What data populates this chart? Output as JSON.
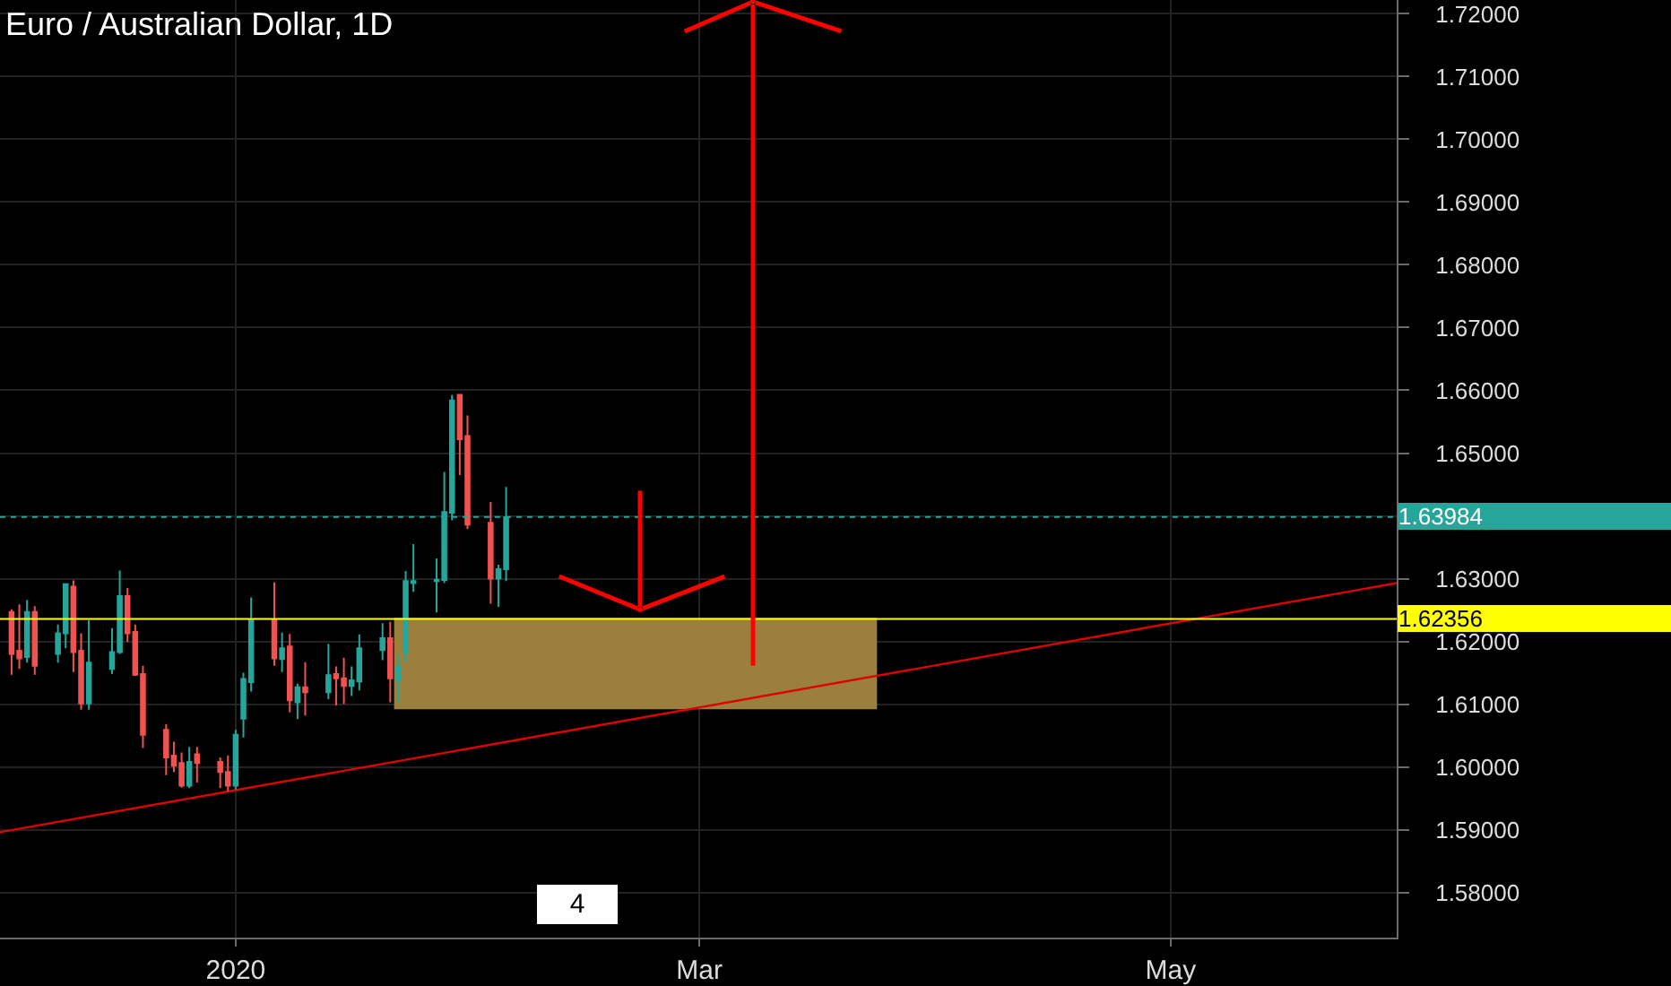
{
  "chart_data": {
    "type": "candlestick",
    "title": "Euro / Australian Dollar, 1D",
    "x": [
      "2019-12-03",
      "2019-12-04",
      "2019-12-05",
      "2019-12-06",
      "2019-12-09",
      "2019-12-10",
      "2019-12-11",
      "2019-12-12",
      "2019-12-13",
      "2019-12-16",
      "2019-12-17",
      "2019-12-18",
      "2019-12-19",
      "2019-12-20",
      "2019-12-23",
      "2019-12-24",
      "2019-12-25",
      "2019-12-26",
      "2019-12-27",
      "2019-12-30",
      "2019-12-31",
      "2020-01-01",
      "2020-01-02",
      "2020-01-03",
      "2020-01-06",
      "2020-01-07",
      "2020-01-08",
      "2020-01-09",
      "2020-01-10",
      "2020-01-13",
      "2020-01-14",
      "2020-01-15",
      "2020-01-16",
      "2020-01-17",
      "2020-01-20",
      "2020-01-21",
      "2020-01-22",
      "2020-01-23",
      "2020-01-24",
      "2020-01-27",
      "2020-01-28",
      "2020-01-29",
      "2020-01-30",
      "2020-01-31",
      "2020-02-03",
      "2020-02-04",
      "2020-02-05"
    ],
    "ohlc": [
      [
        1.6247,
        1.6251,
        1.6147,
        1.618
      ],
      [
        1.6185,
        1.6259,
        1.6156,
        1.6173
      ],
      [
        1.6175,
        1.6266,
        1.6166,
        1.6247
      ],
      [
        1.6247,
        1.6256,
        1.6147,
        1.6161
      ],
      [
        1.618,
        1.6227,
        1.6166,
        1.6213
      ],
      [
        1.6213,
        1.6291,
        1.6189,
        1.6291
      ],
      [
        1.6287,
        1.6297,
        1.6151,
        1.6183
      ],
      [
        1.6185,
        1.6213,
        1.6091,
        1.6101
      ],
      [
        1.6101,
        1.6234,
        1.6091,
        1.6166
      ],
      [
        1.6156,
        1.6221,
        1.6148,
        1.6183
      ],
      [
        1.6183,
        1.6313,
        1.618,
        1.6272
      ],
      [
        1.6272,
        1.6285,
        1.6199,
        1.6213
      ],
      [
        1.6215,
        1.6227,
        1.6145,
        1.6147
      ],
      [
        1.6148,
        1.6161,
        1.603,
        1.6051
      ],
      [
        1.6059,
        1.6068,
        1.5987,
        1.6015
      ],
      [
        1.6018,
        1.604,
        1.5992,
        1.6002
      ],
      [
        1.6006,
        1.6023,
        1.5967,
        1.597
      ],
      [
        1.597,
        1.6032,
        1.5966,
        1.6008
      ],
      [
        1.602,
        1.6032,
        1.5975,
        1.6006
      ],
      [
        1.6008,
        1.6015,
        1.5966,
        1.5992
      ],
      [
        1.5992,
        1.6018,
        1.5961,
        1.597
      ],
      [
        1.597,
        1.6059,
        1.5964,
        1.6051
      ],
      [
        1.6077,
        1.615,
        1.6047,
        1.614
      ],
      [
        1.6135,
        1.627,
        1.612,
        1.6234
      ],
      [
        1.6234,
        1.6294,
        1.6161,
        1.6173
      ],
      [
        1.6172,
        1.6214,
        1.6151,
        1.6189
      ],
      [
        1.6192,
        1.6212,
        1.6087,
        1.6106
      ],
      [
        1.6103,
        1.6133,
        1.6076,
        1.6127
      ],
      [
        1.6127,
        1.6167,
        1.6082,
        1.6119
      ],
      [
        1.6119,
        1.6196,
        1.6108,
        1.6146
      ],
      [
        1.6148,
        1.616,
        1.6098,
        1.6141
      ],
      [
        1.6141,
        1.6174,
        1.61,
        1.6129
      ],
      [
        1.6129,
        1.616,
        1.6113,
        1.6138
      ],
      [
        1.6136,
        1.6211,
        1.6122,
        1.6189
      ],
      [
        1.6186,
        1.6229,
        1.617,
        1.6205
      ],
      [
        1.6205,
        1.6231,
        1.6103,
        1.6141
      ],
      [
        1.6138,
        1.6179,
        1.6103,
        1.616
      ],
      [
        1.6182,
        1.6312,
        1.6167,
        1.6296
      ],
      [
        1.6293,
        1.6355,
        1.6279,
        1.6296
      ],
      [
        1.6296,
        1.6332,
        1.6246,
        1.6298
      ],
      [
        1.6298,
        1.647,
        1.6293,
        1.6406
      ],
      [
        1.6405,
        1.6593,
        1.6393,
        1.6584
      ],
      [
        1.6593,
        1.6593,
        1.6465,
        1.6522
      ],
      [
        1.6527,
        1.656,
        1.6379,
        1.6386
      ],
      [
        1.6389,
        1.6422,
        1.626,
        1.63
      ],
      [
        1.63,
        1.6322,
        1.6255,
        1.6315
      ],
      [
        1.6315,
        1.6446,
        1.6296,
        1.6398
      ]
    ],
    "colors": [
      "#ef5350",
      "#ef5350",
      "#26a69a",
      "#ef5350",
      "#26a69a",
      "#26a69a",
      "#ef5350",
      "#ef5350",
      "#26a69a",
      "#26a69a",
      "#26a69a",
      "#ef5350",
      "#ef5350",
      "#ef5350",
      "#ef5350",
      "#ef5350",
      "#ef5350",
      "#26a69a",
      "#ef5350",
      "#ef5350",
      "#ef5350",
      "#26a69a",
      "#26a69a",
      "#26a69a",
      "#ef5350",
      "#26a69a",
      "#ef5350",
      "#26a69a",
      "#ef5350",
      "#26a69a",
      "#ef5350",
      "#ef5350",
      "#26a69a",
      "#26a69a",
      "#26a69a",
      "#ef5350",
      "#26a69a",
      "#26a69a",
      "#26a69a",
      "#26a69a",
      "#26a69a",
      "#26a69a",
      "#ef5350",
      "#ef5350",
      "#ef5350",
      "#26a69a",
      "#26a69a"
    ],
    "series": [
      {
        "type": "line",
        "x": [
          "2020-01-21T12:00",
          "2020-03-24"
        ],
        "values": [
          1.6236,
          1.6236
        ],
        "lower": [
          1.6092,
          1.6092
        ],
        "upper": [
          1.6236,
          1.6236
        ],
        "color": "#9b7f3c"
      },
      {
        "type": "line",
        "x": [
          "2019-12-01T12:00",
          "2020-05-30T06:00"
        ],
        "values": [
          1.5896,
          1.6293
        ],
        "color": "#e00000"
      }
    ],
    "xlim": [
      "2019-12-01T12:00",
      "2020-05-30T06:00"
    ],
    "xticks": [
      {
        "value": "2020-01-01",
        "label": "2020"
      },
      {
        "value": "2020-03-01",
        "label": "Mar"
      },
      {
        "value": "2020-05-01",
        "label": "May"
      }
    ],
    "ylim": [
      1.5728,
      1.7222
    ],
    "yticks": [
      {
        "value": 1.58,
        "label": "1.58000"
      },
      {
        "value": 1.59,
        "label": "1.59000"
      },
      {
        "value": 1.6,
        "label": "1.60000"
      },
      {
        "value": 1.61,
        "label": "1.61000"
      },
      {
        "value": 1.62,
        "label": "1.62000"
      },
      {
        "value": 1.63,
        "label": "1.63000"
      },
      {
        "value": 1.64,
        "label": null
      },
      {
        "value": 1.65,
        "label": "1.65000"
      },
      {
        "value": 1.66,
        "label": "1.66000"
      },
      {
        "value": 1.67,
        "label": "1.67000"
      },
      {
        "value": 1.68,
        "label": "1.68000"
      },
      {
        "value": 1.69,
        "label": "1.69000"
      },
      {
        "value": 1.7,
        "label": "1.70000"
      },
      {
        "value": 1.71,
        "label": "1.71000"
      },
      {
        "value": 1.72,
        "label": "1.72000"
      }
    ],
    "ref_lines": [
      {
        "axis": "y",
        "value": 1.62356,
        "label": "1.62356",
        "color": "#ffff00"
      },
      {
        "axis": "y",
        "value": 1.63984,
        "label": "1.63984",
        "color": "#26a69a",
        "line_style": "dotted"
      }
    ],
    "annotations": [
      "4"
    ],
    "grid": true
  }
}
